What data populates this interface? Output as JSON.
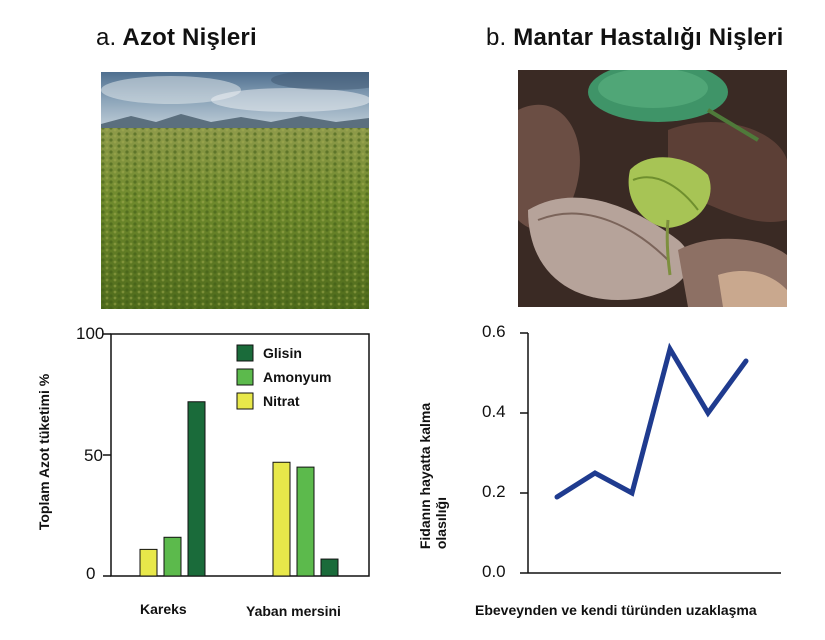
{
  "panel_a": {
    "letter": "a.",
    "title": "Azot Nişleri",
    "photo_icon": "tundra-meadow-photo",
    "chart_data": {
      "type": "bar",
      "title": "Azot Nişleri",
      "ylabel": "Toplam Azot tüketimi %",
      "xlabel": "",
      "ylim": [
        0,
        100
      ],
      "yticks": [
        "0",
        "50",
        "100"
      ],
      "ytick_values": [
        0,
        50,
        100
      ],
      "categories": [
        "Kareks",
        "Yaban mersini"
      ],
      "series": [
        {
          "name": "Nitrat",
          "color": "#e8e84a",
          "values": [
            11,
            47
          ]
        },
        {
          "name": "Amonyum",
          "color": "#5cba4c",
          "values": [
            16,
            45
          ]
        },
        {
          "name": "Glisin",
          "color": "#1a6b3a",
          "values": [
            72,
            7
          ]
        }
      ],
      "legend_order": [
        "Glisin",
        "Amonyum",
        "Nitrat"
      ],
      "legend_position": "top-right"
    }
  },
  "panel_b": {
    "letter": "b.",
    "title": "Mantar Hastalığı Nişleri",
    "photo_icon": "seedling-leaf-litter-photo",
    "chart_data": {
      "type": "line",
      "title": "Mantar Hastalığı Nişleri",
      "ylabel_line1": "Fidanın hayatta kalma",
      "ylabel_line2": "olasılığı",
      "xlabel": "Ebeveynden ve kendi türünden uzaklaşma",
      "ylim": [
        0,
        0.6
      ],
      "yticks": [
        "0.0",
        "0.2",
        "0.4",
        "0.6"
      ],
      "ytick_values": [
        0,
        0.2,
        0.4,
        0.6
      ],
      "x": [
        1,
        2,
        3,
        4,
        5,
        6
      ],
      "series": [
        {
          "name": "Fidanın hayatta kalma olasılığı",
          "color": "#1f3b8f",
          "values": [
            0.19,
            0.25,
            0.2,
            0.56,
            0.4,
            0.53
          ]
        }
      ]
    }
  }
}
